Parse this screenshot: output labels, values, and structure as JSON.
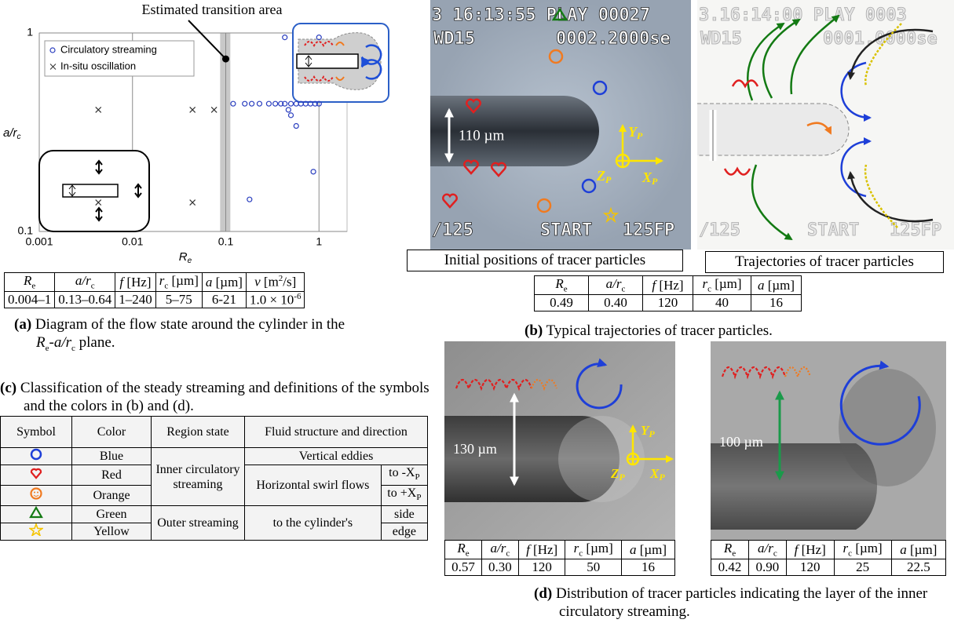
{
  "chart_data": {
    "type": "scatter",
    "x_label": [
      "R",
      "e"
    ],
    "y_label": [
      "a/r",
      "c"
    ],
    "xlim": [
      0.001,
      2
    ],
    "ylim": [
      0.1,
      1
    ],
    "xticks": [
      0.001,
      0.01,
      0.1,
      1
    ],
    "yticks": [
      0.1,
      1
    ],
    "log_x": true,
    "log_y": true,
    "grid": true,
    "legend": "upper left",
    "transition_band": [
      0.087,
      0.112
    ],
    "annotation": {
      "text": "Estimated transition area",
      "x": 0.1,
      "y": 0.74
    },
    "series": [
      {
        "name": "Circulatory streaming",
        "color": "#2b3fbf",
        "marker": "circle",
        "x": [
          0.12,
          0.16,
          0.19,
          0.23,
          0.29,
          0.34,
          0.39,
          0.43,
          0.5,
          0.57,
          0.64,
          0.72,
          0.81,
          0.91,
          1.0,
          0.43,
          1.0,
          0.47,
          0.5,
          0.57,
          0.87,
          0.18
        ],
        "y": [
          0.44,
          0.44,
          0.44,
          0.44,
          0.44,
          0.44,
          0.44,
          0.44,
          0.44,
          0.44,
          0.44,
          0.44,
          0.44,
          0.44,
          0.44,
          0.95,
          0.95,
          0.41,
          0.385,
          0.34,
          0.2,
          0.145
        ]
      },
      {
        "name": "In-situ oscillation",
        "color": "#333333",
        "marker": "cross",
        "x": [
          0.0043,
          0.044,
          0.075,
          0.0043,
          0.044
        ],
        "y": [
          0.41,
          0.41,
          0.41,
          0.14,
          0.14
        ]
      }
    ]
  },
  "panel_a": {
    "table": {
      "header": [
        [
          "R",
          "e"
        ],
        [
          "a/r",
          "c"
        ],
        [
          "f",
          " [Hz]"
        ],
        [
          "r",
          "c",
          " [µm]"
        ],
        [
          "a",
          " [µm]"
        ],
        [
          "v",
          " [m",
          "2",
          "/s]"
        ]
      ],
      "rows": [
        [
          "0.004–1",
          "0.13–0.64",
          "1–240",
          "5–75",
          "6-21",
          [
            "1.0 × 10",
            "-6"
          ]
        ]
      ]
    },
    "caption": {
      "label": "(a)",
      "text": [
        " Diagram of the flow state around the cylinder in the ",
        "R",
        "e",
        "-",
        "a/r",
        "c",
        " plane."
      ]
    }
  },
  "panel_b": {
    "images": [
      {
        "overlay": [
          "3  16:13:55 PLAY 00027",
          "WD15",
          "0002.2000se",
          "/125",
          "START",
          "125FP"
        ],
        "scale": "110 µm",
        "axes": [
          [
            "Y",
            "P"
          ],
          [
            "Z",
            "P"
          ],
          [
            "X",
            "P"
          ]
        ],
        "label": "Initial positions of tracer particles"
      },
      {
        "overlay": [
          "3.16:14:00 PLAY 0003",
          "WD15",
          "0001.0000se",
          "/125",
          "START",
          "125FP"
        ],
        "label": "Trajectories of tracer particles"
      }
    ],
    "table": {
      "header": [
        [
          "R",
          "e"
        ],
        [
          "a/r",
          "c"
        ],
        [
          "f",
          " [Hz]"
        ],
        [
          "r",
          "c",
          " [µm]"
        ],
        [
          "a",
          " [µm]"
        ]
      ],
      "rows": [
        [
          "0.49",
          "0.40",
          "120",
          "40",
          "16"
        ]
      ]
    },
    "caption": {
      "label": "(b)",
      "text": " Typical trajectories of tracer particles."
    }
  },
  "panel_c": {
    "caption": {
      "label": "(c)",
      "text": " Classification of the steady streaming and definitions of the symbols and the colors in (b) and (d)."
    },
    "table": {
      "header": [
        "Symbol",
        "Color",
        "Region state",
        "Fluid structure and direction"
      ],
      "colors": [
        "Blue",
        "Red",
        "Orange",
        "Green",
        "Yellow"
      ],
      "regions": [
        "Inner circulatory streaming",
        "Outer streaming"
      ],
      "structures": [
        "Vertical eddies",
        "Horizontal swirl flows",
        "to the cylinder's"
      ],
      "directions": [
        [
          "to -X",
          "P"
        ],
        [
          "to +X",
          "P"
        ],
        "side",
        "edge"
      ]
    }
  },
  "panel_d": {
    "images": [
      {
        "scale": "130 µm",
        "axes": [
          [
            "Y",
            "P"
          ],
          [
            "Z",
            "P"
          ],
          [
            "X",
            "P"
          ]
        ],
        "table": {
          "header": [
            [
              "R",
              "e"
            ],
            [
              "a/r",
              "c"
            ],
            [
              "f",
              " [Hz]"
            ],
            [
              "r",
              "c",
              " [µm]"
            ],
            [
              "a",
              " [µm]"
            ]
          ],
          "rows": [
            [
              "0.57",
              "0.30",
              "120",
              "50",
              "16"
            ]
          ]
        }
      },
      {
        "scale": "100 µm",
        "table": {
          "header": [
            [
              "R",
              "e"
            ],
            [
              "a/r",
              "c"
            ],
            [
              "f",
              " [Hz]"
            ],
            [
              "r",
              "c",
              " [µm]"
            ],
            [
              "a",
              " [µm]"
            ]
          ],
          "rows": [
            [
              "0.42",
              "0.90",
              "120",
              "25",
              "22.5"
            ]
          ]
        }
      }
    ],
    "caption": {
      "label": "(d)",
      "text": " Distribution of tracer particles indicating the layer of the inner circulatory streaming."
    }
  }
}
